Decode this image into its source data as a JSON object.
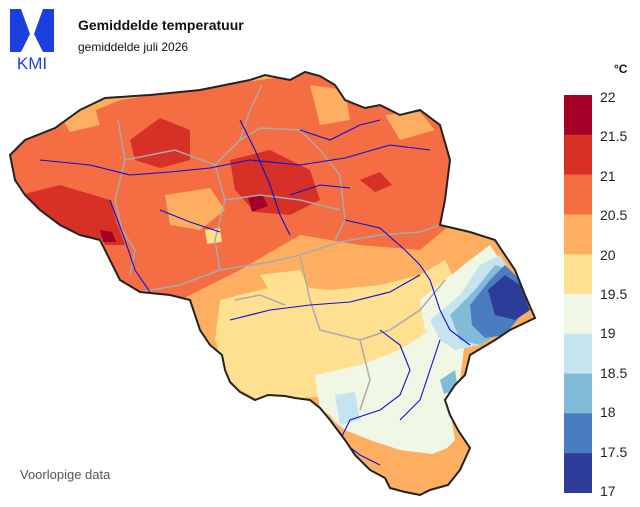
{
  "header": {
    "title": "Gemiddelde temperatuur",
    "subtitle": "gemiddelde juli 2026"
  },
  "logo": {
    "text": "KMI",
    "primary_color": "#1c3fe0"
  },
  "note": "Voorlopige data",
  "legend": {
    "unit": "°C",
    "labels": [
      "22",
      "21.5",
      "21",
      "20.5",
      "20",
      "19.5",
      "19",
      "18.5",
      "18",
      "17.5",
      "17"
    ],
    "colors": [
      "#a50026",
      "#d73027",
      "#f46d43",
      "#fdae61",
      "#fee090",
      "#f0f7e4",
      "#c6e4f0",
      "#82bbd8",
      "#4a7dc0",
      "#2d3c98"
    ]
  },
  "map": {
    "border_color": "#222222",
    "river_color": "#0a12d8",
    "province_color": "#aaaaaa"
  }
}
